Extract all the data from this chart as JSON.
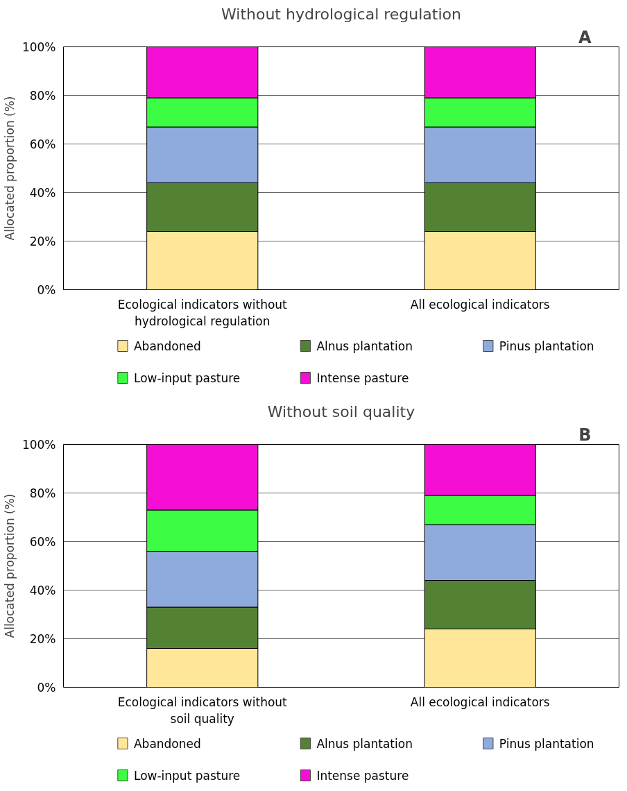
{
  "chart_data": [
    {
      "type": "bar",
      "stacked": true,
      "title": "Without hydrological regulation",
      "ylabel": "Allocated proportion (%)",
      "annotations": [
        "A"
      ],
      "categories": [
        "Ecological indicators without hydrological regulation",
        "All ecological indicators"
      ],
      "series": [
        {
          "name": "Abandoned",
          "color": "#ffe699",
          "values": [
            24,
            24
          ]
        },
        {
          "name": "Alnus plantation",
          "color": "#548235",
          "values": [
            20,
            20
          ]
        },
        {
          "name": "Pinus plantation",
          "color": "#8faadc",
          "values": [
            23,
            23
          ]
        },
        {
          "name": "Low-input pasture",
          "color": "#3cfc44",
          "values": [
            12,
            12
          ]
        },
        {
          "name": "Intense pasture",
          "color": "#f50fd4",
          "values": [
            21,
            21
          ]
        }
      ],
      "ylim": [
        0,
        100
      ],
      "yticks": [
        {
          "value": 0,
          "label": "0%"
        },
        {
          "value": 20,
          "label": "20%"
        },
        {
          "value": 40,
          "label": "40%"
        },
        {
          "value": 60,
          "label": "60%"
        },
        {
          "value": 80,
          "label": "80%"
        },
        {
          "value": 100,
          "label": "100%"
        }
      ],
      "grid": "y",
      "legend": "bottom"
    },
    {
      "type": "bar",
      "stacked": true,
      "title": "Without soil quality",
      "ylabel": "Allocated proportion (%)",
      "annotations": [
        "B"
      ],
      "categories": [
        "Ecological indicators without soil quality",
        "All ecological indicators"
      ],
      "series": [
        {
          "name": "Abandoned",
          "color": "#ffe699",
          "values": [
            16,
            24
          ]
        },
        {
          "name": "Alnus plantation",
          "color": "#548235",
          "values": [
            17,
            20
          ]
        },
        {
          "name": "Pinus plantation",
          "color": "#8faadc",
          "values": [
            23,
            23
          ]
        },
        {
          "name": "Low-input pasture",
          "color": "#3cfc44",
          "values": [
            17,
            12
          ]
        },
        {
          "name": "Intense pasture",
          "color": "#f50fd4",
          "values": [
            27,
            21
          ]
        }
      ],
      "ylim": [
        0,
        100
      ],
      "yticks": [
        {
          "value": 0,
          "label": "0%"
        },
        {
          "value": 20,
          "label": "20%"
        },
        {
          "value": 40,
          "label": "40%"
        },
        {
          "value": 60,
          "label": "60%"
        },
        {
          "value": 80,
          "label": "80%"
        },
        {
          "value": 100,
          "label": "100%"
        }
      ],
      "grid": "y",
      "legend": "bottom"
    }
  ]
}
